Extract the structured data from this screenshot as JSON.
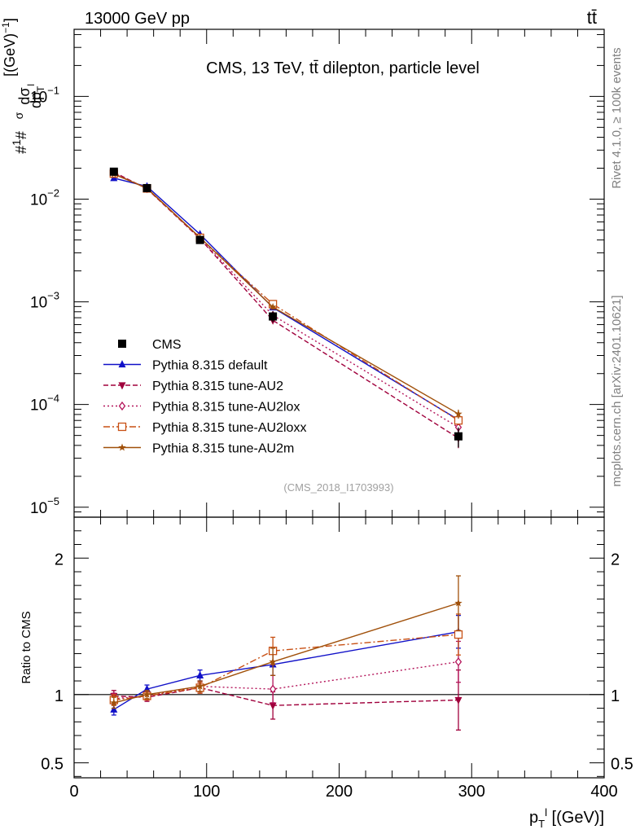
{
  "header": {
    "left": "13000 GeV pp",
    "right": "tt̄"
  },
  "side_labels": {
    "rivet": "Rivet 4.1.0, ≥ 100k events",
    "mcplots": "mcplots.cern.ch [arXiv:2401.10621]"
  },
  "colors": {
    "cms": "#000000",
    "default": "#1010c8",
    "au2": "#a0003c",
    "au2lox": "#b4145a",
    "au2loxx": "#c85014",
    "au2m": "#a0500a"
  },
  "chart_data": [
    {
      "type": "line",
      "panel": "main",
      "title": "CMS, 13 TeV, tt̄ dilepton, particle level",
      "analysis_tag": "(CMS_2018_I1703993)",
      "ylabel": "# 1/σ # dσ/dp_T^l [(GeV)^-1]",
      "yscale": "log",
      "xlim": [
        0,
        400
      ],
      "ylim": [
        8e-06,
        0.45
      ],
      "y_ticks": [
        {
          "value": 1e-05,
          "base": "10",
          "exp": "−5"
        },
        {
          "value": 0.0001,
          "base": "10",
          "exp": "−4"
        },
        {
          "value": 0.001,
          "base": "10",
          "exp": "−3"
        },
        {
          "value": 0.01,
          "base": "10",
          "exp": "−2"
        },
        {
          "value": 0.1,
          "base": "10",
          "exp": "−1"
        }
      ],
      "x": [
        30,
        55,
        95,
        150,
        290
      ],
      "legend_position": "bottom-left",
      "series": [
        {
          "key": "cms",
          "name": "CMS",
          "marker": "square",
          "dash": "none",
          "values": [
            0.0185,
            0.0128,
            0.004,
            0.00072,
            4.9e-05
          ],
          "rel_err": [
            0.05,
            0.04,
            0.06,
            0.12,
            0.22
          ]
        },
        {
          "key": "default",
          "name": "Pythia 8.315 default",
          "marker": "triangle-up",
          "dash": "none",
          "values": [
            0.016,
            0.0133,
            0.00455,
            0.00088,
            7.1e-05
          ],
          "rel_err": [
            0.02,
            0.02,
            0.03,
            0.05,
            0.08
          ]
        },
        {
          "key": "au2",
          "name": "Pythia 8.315 tune-AU2",
          "marker": "triangle-down",
          "dash": "6,3",
          "values": [
            0.0183,
            0.0126,
            0.00412,
            0.00066,
            4.7e-05
          ],
          "rel_err": [
            0.02,
            0.02,
            0.03,
            0.06,
            0.2
          ]
        },
        {
          "key": "au2lox",
          "name": "Pythia 8.315 tune-AU2lox",
          "marker": "diamond-open",
          "dash": "2,3",
          "values": [
            0.0179,
            0.0127,
            0.00418,
            0.00074,
            6e-05
          ],
          "rel_err": [
            0.02,
            0.02,
            0.03,
            0.06,
            0.1
          ]
        },
        {
          "key": "au2loxx",
          "name": "Pythia 8.315 tune-AU2loxx",
          "marker": "square-open",
          "dash": "8,3,2,3",
          "values": [
            0.0177,
            0.0127,
            0.0042,
            0.00095,
            7e-05
          ],
          "rel_err": [
            0.02,
            0.02,
            0.03,
            0.06,
            0.1
          ]
        },
        {
          "key": "au2m",
          "name": "Pythia 8.315 tune-AU2m",
          "marker": "star",
          "dash": "none",
          "values": [
            0.0175,
            0.0128,
            0.00423,
            0.00089,
            8.1e-05
          ],
          "rel_err": [
            0.02,
            0.02,
            0.03,
            0.06,
            0.1
          ]
        }
      ]
    },
    {
      "type": "line",
      "panel": "ratio",
      "ylabel": "Ratio to CMS",
      "xlabel": "p_T^l [(GeV)]",
      "xlim": [
        0,
        400
      ],
      "ylim": [
        0.39,
        2.3
      ],
      "y_ticks": [
        {
          "value": 0.5,
          "label": "0.5"
        },
        {
          "value": 1,
          "label": "1"
        },
        {
          "value": 2,
          "label": "2"
        }
      ],
      "x_ticks": [
        {
          "value": 0,
          "label": "0"
        },
        {
          "value": 100,
          "label": "100"
        },
        {
          "value": 200,
          "label": "200"
        },
        {
          "value": 300,
          "label": "300"
        },
        {
          "value": 400,
          "label": "400"
        }
      ],
      "x": [
        30,
        55,
        95,
        150,
        290
      ],
      "reference_line": 1,
      "series": [
        {
          "key": "cms",
          "name": "CMS",
          "marker": "none",
          "dash": "none",
          "values": [
            1,
            1,
            1,
            1,
            1
          ],
          "err": [
            0,
            0,
            0,
            0,
            0
          ]
        },
        {
          "key": "default",
          "name": "Pythia 8.315 default",
          "marker": "triangle-up",
          "dash": "none",
          "values": [
            0.89,
            1.04,
            1.14,
            1.22,
            1.46
          ],
          "err": [
            0.04,
            0.03,
            0.04,
            0.08,
            0.12
          ]
        },
        {
          "key": "au2",
          "name": "Pythia 8.315 tune-AU2",
          "marker": "triangle-down",
          "dash": "6,3",
          "values": [
            0.99,
            0.98,
            1.05,
            0.92,
            0.96
          ],
          "err": [
            0.04,
            0.03,
            0.04,
            0.1,
            0.22
          ]
        },
        {
          "key": "au2lox",
          "name": "Pythia 8.315 tune-AU2lox",
          "marker": "diamond-open",
          "dash": "2,3",
          "values": [
            0.97,
            0.99,
            1.06,
            1.04,
            1.24
          ],
          "err": [
            0.04,
            0.03,
            0.04,
            0.1,
            0.15
          ]
        },
        {
          "key": "au2loxx",
          "name": "Pythia 8.315 tune-AU2loxx",
          "marker": "square-open",
          "dash": "8,3,2,3",
          "values": [
            0.96,
            0.99,
            1.05,
            1.32,
            1.44
          ],
          "err": [
            0.04,
            0.03,
            0.04,
            0.1,
            0.15
          ]
        },
        {
          "key": "au2m",
          "name": "Pythia 8.315 tune-AU2m",
          "marker": "star",
          "dash": "none",
          "values": [
            0.94,
            1.0,
            1.06,
            1.24,
            1.67
          ],
          "err": [
            0.04,
            0.03,
            0.04,
            0.1,
            0.2
          ]
        }
      ]
    }
  ]
}
